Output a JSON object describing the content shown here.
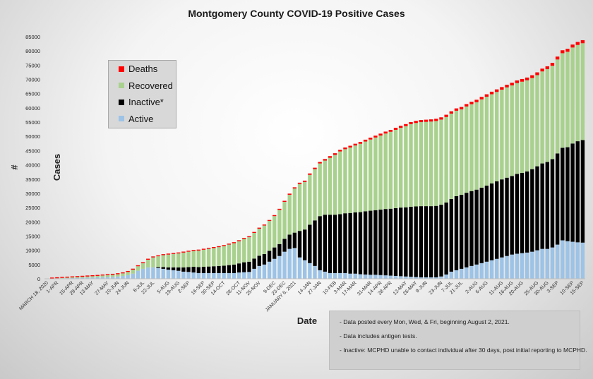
{
  "chart_data": {
    "type": "bar",
    "stacked": true,
    "title": "Montgomery County COVID-19 Positive Cases",
    "xlabel": "Date",
    "ylabel": "# Cases",
    "ylim": [
      0,
      85000
    ],
    "yticks": [
      0,
      5000,
      10000,
      15000,
      20000,
      25000,
      30000,
      35000,
      40000,
      45000,
      50000,
      55000,
      60000,
      65000,
      70000,
      75000,
      80000,
      85000
    ],
    "ytick_labels": [
      "0",
      "5000",
      "10000",
      "15000",
      "20000",
      "25000",
      "30000",
      "35000",
      "40000",
      "45000",
      "50000",
      "55000",
      "60000",
      "65000",
      "70000",
      "75000",
      "80000",
      "85000"
    ],
    "xtick_labels": [
      "MARCH 18, 2020",
      "1-APR",
      "15-APR",
      "29-APR",
      "13-MAY",
      "27-MAY",
      "10-JUN",
      "24-JUN",
      "8-JUL",
      "22-JUL",
      "5-AUG",
      "19-AUG",
      "2-SEP",
      "16-SEP",
      "30-SEP",
      "14-OCT",
      "28-OCT",
      "11-NOV",
      "25-NOV",
      "9-DEC",
      "23-DEC",
      "JANUARY 6, 2021",
      "14-JAN",
      "27-JAN",
      "10-FEB",
      "3-MAR",
      "17-MAR",
      "31-MAR",
      "14-APR",
      "28-APR",
      "12-MAY",
      "26-MAY",
      "9-JUN",
      "23-JUN",
      "7-JUL",
      "21-JUL",
      "2-AUG",
      "6-AUG",
      "11-AUG",
      "16-AUG",
      "20-AUG",
      "25-AUG",
      "30-AUG",
      "3-SEP",
      "10-SEP",
      "15-SEP"
    ],
    "grid": false,
    "legend_position": "upper-left",
    "categories_count": 107,
    "series": [
      {
        "name": "Active",
        "color": "#9dc3e6",
        "values": [
          20,
          50,
          100,
          150,
          200,
          250,
          300,
          350,
          400,
          450,
          500,
          550,
          600,
          650,
          800,
          1000,
          1300,
          1800,
          2800,
          3500,
          4000,
          4000,
          3800,
          3500,
          3200,
          3000,
          2800,
          2500,
          2400,
          2200,
          2000,
          2000,
          2000,
          2000,
          2000,
          2000,
          2000,
          2000,
          2200,
          2300,
          2400,
          3500,
          4500,
          5000,
          6000,
          7000,
          8000,
          9500,
          10500,
          10800,
          7500,
          6500,
          5500,
          4500,
          3000,
          2500,
          2000,
          2000,
          2000,
          2000,
          1800,
          1800,
          1600,
          1500,
          1400,
          1400,
          1300,
          1200,
          1100,
          1000,
          900,
          800,
          700,
          600,
          500,
          500,
          500,
          500,
          800,
          1500,
          2500,
          3000,
          3500,
          4000,
          4500,
          5000,
          5500,
          6000,
          6500,
          7000,
          7500,
          8000,
          8500,
          8800,
          9000,
          9200,
          9500,
          10000,
          10500,
          10500,
          11000,
          12000,
          13500,
          13200,
          13000,
          12800,
          12700
        ]
      },
      {
        "name": "Inactive*",
        "color": "#000000",
        "values": [
          0,
          0,
          0,
          0,
          0,
          0,
          0,
          0,
          0,
          0,
          0,
          0,
          0,
          0,
          0,
          0,
          0,
          0,
          0,
          0,
          0,
          0,
          300,
          600,
          800,
          1000,
          1200,
          1500,
          1700,
          2000,
          2100,
          2200,
          2300,
          2400,
          2500,
          2600,
          2800,
          3000,
          3200,
          3500,
          3600,
          3600,
          3600,
          3700,
          3800,
          4000,
          4200,
          4500,
          5000,
          5400,
          9300,
          10800,
          13500,
          16000,
          19000,
          20000,
          20500,
          20500,
          20700,
          21000,
          21300,
          21500,
          21800,
          22200,
          22500,
          22700,
          23000,
          23300,
          23500,
          23800,
          24100,
          24300,
          24600,
          24800,
          25000,
          25000,
          25000,
          25100,
          25200,
          25300,
          25500,
          26000,
          26000,
          26200,
          26300,
          26300,
          26500,
          26700,
          27000,
          27200,
          27400,
          27500,
          27600,
          28000,
          28200,
          28500,
          29000,
          29500,
          30000,
          30500,
          31000,
          32000,
          32500,
          33000,
          34500,
          35500,
          36000
        ]
      },
      {
        "name": "Recovered",
        "color": "#a9d18e",
        "values": [
          0,
          30,
          80,
          150,
          200,
          250,
          300,
          350,
          400,
          450,
          500,
          600,
          700,
          750,
          800,
          900,
          1100,
          1400,
          1600,
          2000,
          2700,
          3500,
          3800,
          4200,
          4500,
          4700,
          4900,
          5200,
          5400,
          5600,
          5800,
          6000,
          6200,
          6400,
          6600,
          6900,
          7200,
          7500,
          7800,
          8200,
          8600,
          9000,
          9500,
          10000,
          10500,
          11000,
          12000,
          13000,
          14000,
          15500,
          16500,
          16700,
          17500,
          18000,
          18500,
          19000,
          20000,
          21000,
          22000,
          22500,
          23000,
          23500,
          24000,
          24500,
          25000,
          25500,
          26000,
          26500,
          27000,
          27500,
          28000,
          28500,
          29000,
          29300,
          29500,
          29600,
          29700,
          29800,
          29900,
          30000,
          30000,
          30000,
          30000,
          30300,
          30500,
          30700,
          31000,
          31200,
          31300,
          31400,
          31500,
          31700,
          31800,
          31900,
          32000,
          32000,
          32000,
          32000,
          32300,
          32600,
          32800,
          33000,
          33200,
          33500,
          33700,
          33800,
          34000
        ]
      },
      {
        "name": "Deaths",
        "color": "#ff0000",
        "values": [
          0,
          1,
          2,
          5,
          10,
          15,
          20,
          25,
          30,
          35,
          40,
          45,
          50,
          55,
          60,
          65,
          70,
          80,
          90,
          100,
          110,
          120,
          130,
          140,
          150,
          160,
          170,
          180,
          190,
          200,
          210,
          220,
          230,
          240,
          250,
          260,
          270,
          280,
          290,
          300,
          310,
          320,
          330,
          340,
          350,
          360,
          370,
          380,
          400,
          420,
          440,
          460,
          480,
          500,
          520,
          540,
          560,
          580,
          590,
          600,
          610,
          620,
          630,
          640,
          650,
          660,
          670,
          680,
          690,
          700,
          710,
          720,
          730,
          740,
          750,
          760,
          770,
          780,
          790,
          800,
          810,
          820,
          830,
          840,
          850,
          860,
          870,
          880,
          890,
          900,
          910,
          920,
          930,
          940,
          950,
          960,
          970,
          980,
          990,
          1000,
          1010,
          1020,
          1030,
          1040,
          1050,
          1060,
          1070
        ]
      }
    ]
  },
  "legend": {
    "items": [
      {
        "label": "Deaths",
        "color": "#ff0000"
      },
      {
        "label": "Recovered",
        "color": "#a9d18e"
      },
      {
        "label": "Inactive*",
        "color": "#000000"
      },
      {
        "label": "Active",
        "color": "#9dc3e6"
      }
    ]
  },
  "notes": [
    "- Data posted every Mon, Wed, & Fri, beginning August 2, 2021.",
    "- Data includes antigen tests.",
    "- Inactive: MCPHD unable to contact individual after 30 days, post initial reporting to MCPHD."
  ]
}
